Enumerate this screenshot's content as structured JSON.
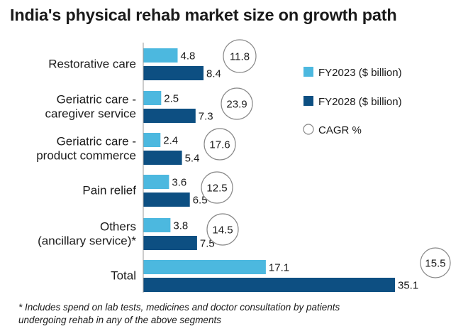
{
  "title": "India's physical rehab market size on growth path",
  "footnote_line1": "* Includes spend on lab tests, medicines and doctor consultation by patients",
  "footnote_line2": "undergoing rehab in any of the above segments",
  "colors": {
    "fy2023": "#4cb8df",
    "fy2028": "#0d4f82",
    "axis": "#999999",
    "circle": "#888888"
  },
  "chart_data": {
    "type": "bar",
    "orientation": "horizontal",
    "title": "India's physical rehab market size on growth path",
    "categories": [
      [
        "Restorative care"
      ],
      [
        "Geriatric care -",
        "caregiver service"
      ],
      [
        "Geriatric care -",
        "product commerce"
      ],
      [
        "Pain relief"
      ],
      [
        "Others",
        "(ancillary service)*"
      ],
      [
        "Total"
      ]
    ],
    "series": [
      {
        "name": "FY2023 ($ billion)",
        "values": [
          4.8,
          2.5,
          2.4,
          3.6,
          3.8,
          17.1
        ]
      },
      {
        "name": "FY2028 ($ billion)",
        "values": [
          8.4,
          7.3,
          5.4,
          6.5,
          7.5,
          35.1
        ]
      }
    ],
    "cagr": {
      "name": "CAGR %",
      "values": [
        11.8,
        23.9,
        17.6,
        12.5,
        14.5,
        15.5
      ]
    },
    "xlim": [
      0,
      35.1
    ],
    "legend_position": "right",
    "grid": false
  }
}
